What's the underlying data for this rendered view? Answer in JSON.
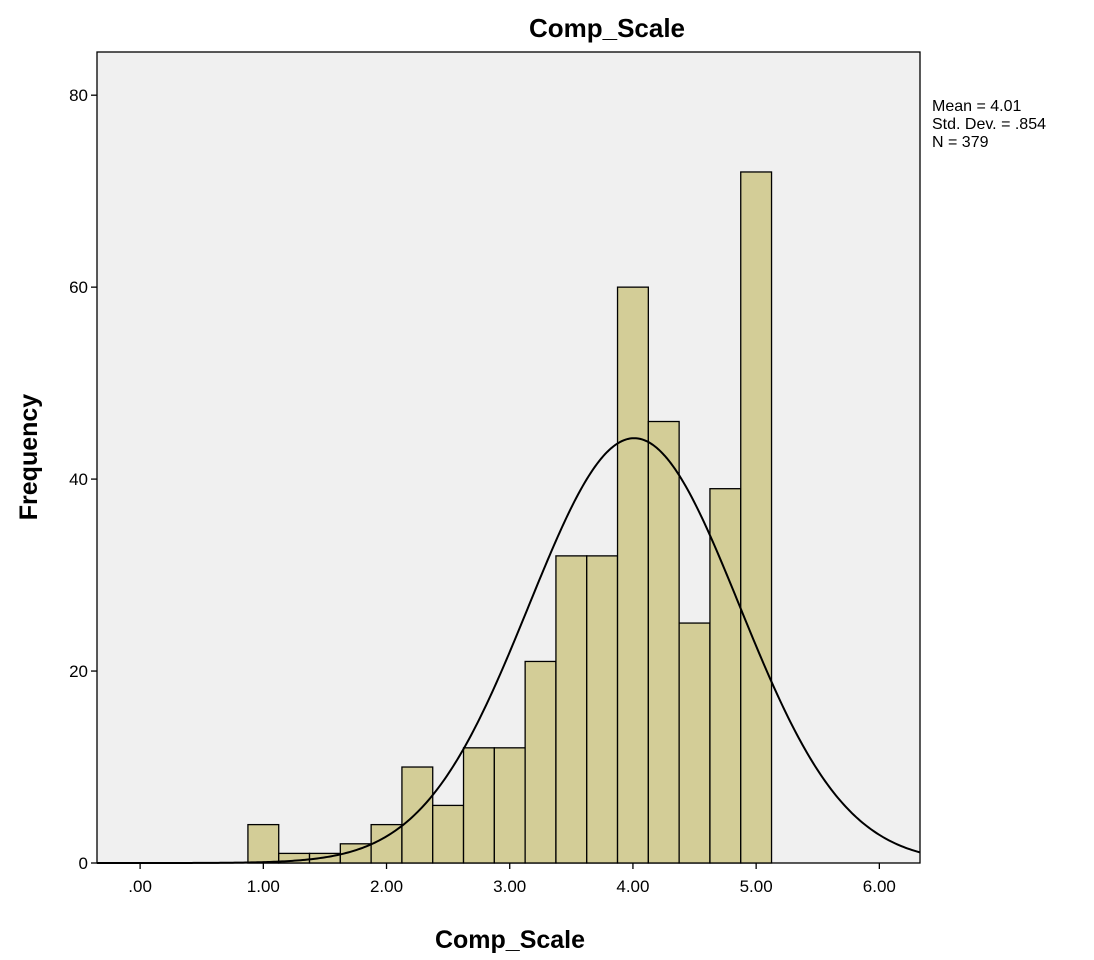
{
  "chart_data": {
    "type": "bar",
    "title": "Comp_Scale",
    "xlabel": "Comp_Scale",
    "ylabel": "Frequency",
    "xlim": [
      -0.35,
      6.33
    ],
    "ylim": [
      0,
      84.5
    ],
    "grid": false,
    "x_ticks": [
      ".00",
      "1.00",
      "2.00",
      "3.00",
      "4.00",
      "5.00",
      "6.00"
    ],
    "y_ticks": [
      "0",
      "20",
      "40",
      "60",
      "80"
    ],
    "bin_width": 0.25,
    "bins": [
      {
        "start": 0.875,
        "end": 1.125,
        "count": 4
      },
      {
        "start": 1.125,
        "end": 1.375,
        "count": 1
      },
      {
        "start": 1.375,
        "end": 1.625,
        "count": 1
      },
      {
        "start": 1.625,
        "end": 1.875,
        "count": 2
      },
      {
        "start": 1.875,
        "end": 2.125,
        "count": 4
      },
      {
        "start": 2.125,
        "end": 2.375,
        "count": 10
      },
      {
        "start": 2.375,
        "end": 2.625,
        "count": 6
      },
      {
        "start": 2.625,
        "end": 2.875,
        "count": 12
      },
      {
        "start": 2.875,
        "end": 3.125,
        "count": 12
      },
      {
        "start": 3.125,
        "end": 3.375,
        "count": 21
      },
      {
        "start": 3.375,
        "end": 3.625,
        "count": 32
      },
      {
        "start": 3.625,
        "end": 3.875,
        "count": 32
      },
      {
        "start": 3.875,
        "end": 4.125,
        "count": 60
      },
      {
        "start": 4.125,
        "end": 4.375,
        "count": 46
      },
      {
        "start": 4.375,
        "end": 4.625,
        "count": 25
      },
      {
        "start": 4.625,
        "end": 4.875,
        "count": 39
      },
      {
        "start": 4.875,
        "end": 5.125,
        "count": 72
      }
    ],
    "normal_curve": {
      "mean": 4.01,
      "sd": 0.854,
      "n": 379
    },
    "stats_lines": [
      "Mean = 4.01",
      "Std. Dev. = .854",
      "N = 379"
    ],
    "legend_position": "top-right outside plot"
  }
}
